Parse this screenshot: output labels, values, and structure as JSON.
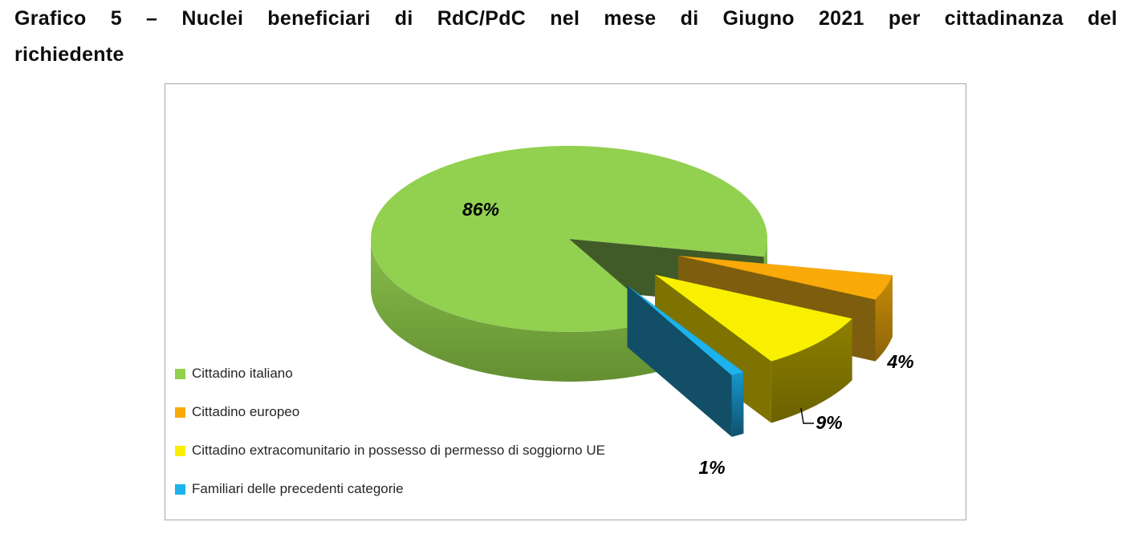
{
  "page": {
    "title_line1": "Grafico 5 – Nuclei beneficiari di RdC/PdC nel mese di Giugno 2021 per cittadinanza del",
    "title_line2": "richiedente"
  },
  "chart_data": {
    "type": "pie",
    "style": "3d-exploded-pie",
    "title": "Grafico 5 – Nuclei beneficiari di RdC/PdC nel mese di Giugno 2021 per cittadinanza del richiedente",
    "unit": "%",
    "categories": [
      "Cittadino italiano",
      "Cittadino europeo",
      "Cittadino extracomunitario in possesso di permesso di soggiorno UE",
      "Familiari delle precedenti categorie"
    ],
    "values": [
      86,
      4,
      9,
      1
    ],
    "data_labels": [
      "86%",
      "4%",
      "9%",
      "1%"
    ],
    "colors": [
      "#92D050",
      "#F9A908",
      "#F8F000",
      "#1CB3EC"
    ],
    "side_colors": [
      [
        "#88BE4D",
        "#648F31"
      ],
      [
        "#C98A06",
        "#8A6409"
      ],
      [
        "#8D8000",
        "#6B6100"
      ],
      [
        "#1798CC",
        "#0F506E"
      ]
    ],
    "wall_colors": [
      "#415B28",
      "#7D5E0E",
      "#7E7300",
      "#124F66"
    ],
    "start_angle_deg": 151.4,
    "exploded": [
      false,
      true,
      true,
      true
    ],
    "legend_position": "bottom-left",
    "background": "#FFFFFF",
    "plot_border_color": "#A6A6A6"
  }
}
